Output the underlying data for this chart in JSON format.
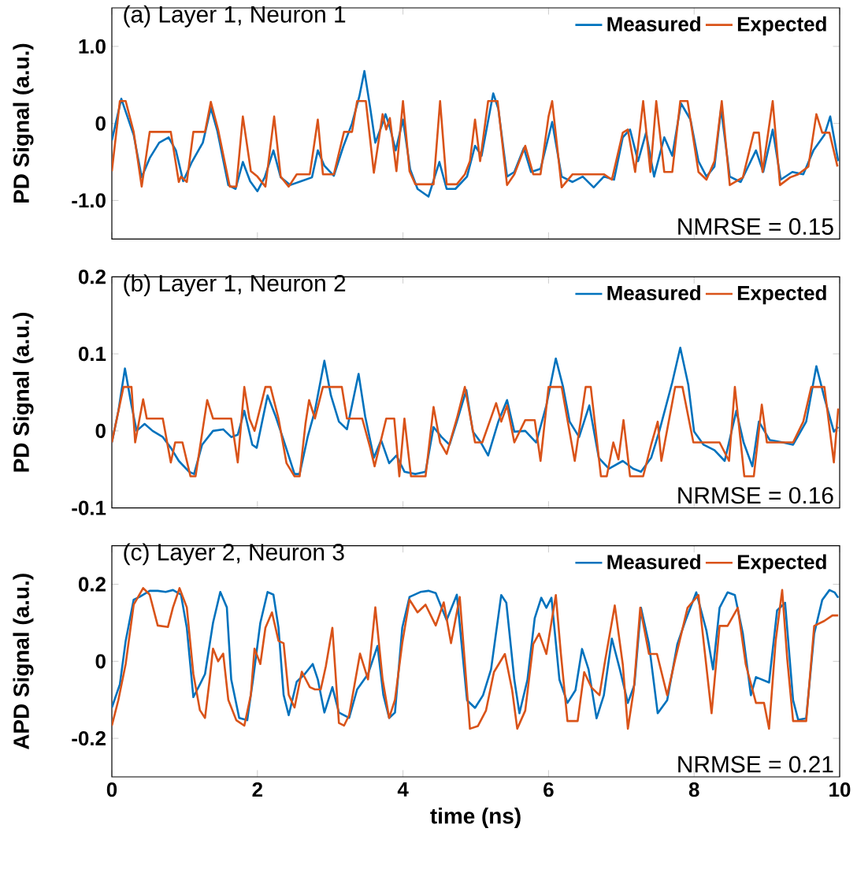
{
  "chart_data": [
    {
      "type": "line",
      "title": "(a) Layer 1, Neuron 1",
      "ylabel": "PD Signal (a.u.)",
      "xlim": [
        0,
        10
      ],
      "ylim": [
        -1.5,
        1.5
      ],
      "xticks": [
        0,
        2,
        4,
        6,
        8,
        10
      ],
      "yticks": [
        {
          "value": -1,
          "label": "-1.0"
        },
        0,
        {
          "value": 1,
          "label": "1.0"
        }
      ],
      "tick_labels": "y",
      "legend": "top right",
      "annotations": [
        "NMRSE = 0.15"
      ],
      "series": [
        {
          "name": "Measured",
          "color": "#0072bd",
          "x": [
            0,
            0.13,
            0.3,
            0.41,
            0.52,
            0.65,
            0.78,
            0.88,
            0.98,
            1.1,
            1.25,
            1.36,
            1.45,
            1.6,
            1.7,
            1.8,
            1.9,
            2.0,
            2.1,
            2.22,
            2.32,
            2.45,
            2.6,
            2.75,
            2.83,
            2.92,
            3.05,
            3.18,
            3.3,
            3.4,
            3.47,
            3.55,
            3.62,
            3.7,
            3.76,
            3.82,
            3.9,
            4.0,
            4.1,
            4.2,
            4.35,
            4.5,
            4.6,
            4.72,
            4.88,
            4.99,
            5.08,
            5.24,
            5.31,
            5.43,
            5.53,
            5.66,
            5.76,
            5.89,
            6.05,
            6.18,
            6.33,
            6.47,
            6.62,
            6.76,
            6.9,
            7.02,
            7.12,
            7.23,
            7.34,
            7.45,
            7.59,
            7.7,
            7.82,
            7.95,
            8.06,
            8.17,
            8.28,
            8.37,
            8.49,
            8.64,
            8.85,
            8.95,
            9.08,
            9.19,
            9.35,
            9.5,
            9.64,
            9.79,
            9.87,
            9.98
          ],
          "values": [
            -0.22,
            0.32,
            -0.15,
            -0.7,
            -0.45,
            -0.25,
            -0.18,
            -0.35,
            -0.75,
            -0.5,
            -0.25,
            0.2,
            -0.1,
            -0.8,
            -0.85,
            -0.5,
            -0.75,
            -0.88,
            -0.7,
            -0.35,
            -0.7,
            -0.8,
            -0.75,
            -0.7,
            -0.35,
            -0.55,
            -0.68,
            -0.3,
            0.0,
            0.35,
            0.68,
            0.2,
            -0.25,
            -0.05,
            0.12,
            -0.05,
            -0.35,
            0.05,
            -0.6,
            -0.85,
            -0.95,
            -0.5,
            -0.85,
            -0.85,
            -0.69,
            -0.29,
            -0.42,
            0.39,
            0.19,
            -0.69,
            -0.63,
            -0.32,
            -0.63,
            -0.59,
            0.02,
            -0.69,
            -0.76,
            -0.69,
            -0.83,
            -0.69,
            -0.73,
            -0.18,
            -0.08,
            -0.49,
            -0.12,
            -0.69,
            -0.18,
            -0.42,
            0.26,
            0.05,
            -0.49,
            -0.69,
            -0.56,
            0.19,
            -0.69,
            -0.76,
            -0.35,
            -0.63,
            -0.08,
            -0.73,
            -0.63,
            -0.66,
            -0.35,
            -0.15,
            0.09,
            -0.49
          ]
        },
        {
          "name": "Expected",
          "color": "#d95319",
          "x": [
            0,
            0.11,
            0.19,
            0.3,
            0.41,
            0.52,
            0.81,
            0.92,
            0.95,
            1.03,
            1.12,
            1.28,
            1.36,
            1.46,
            1.62,
            1.71,
            1.8,
            1.91,
            2.0,
            2.11,
            2.23,
            2.32,
            2.43,
            2.54,
            2.72,
            2.83,
            2.9,
            3.05,
            3.19,
            3.3,
            3.37,
            3.49,
            3.6,
            3.72,
            3.77,
            3.82,
            3.91,
            4.0,
            4.09,
            4.17,
            4.42,
            4.51,
            4.6,
            4.74,
            4.85,
            4.92,
            4.99,
            5.06,
            5.17,
            5.3,
            5.43,
            5.53,
            5.68,
            5.79,
            5.89,
            6.0,
            6.05,
            6.18,
            6.33,
            6.62,
            6.76,
            6.87,
            7.02,
            7.09,
            7.19,
            7.3,
            7.4,
            7.48,
            7.59,
            7.7,
            7.81,
            7.91,
            8.06,
            8.17,
            8.28,
            8.38,
            8.49,
            8.67,
            8.82,
            8.89,
            8.94,
            9.08,
            9.18,
            9.32,
            9.43,
            9.57,
            9.68,
            9.76,
            9.86,
            9.97
          ],
          "values": [
            -0.62,
            0.29,
            0.29,
            -0.11,
            -0.82,
            -0.11,
            -0.11,
            -0.76,
            -0.69,
            -0.76,
            -0.11,
            -0.11,
            0.28,
            -0.08,
            -0.82,
            -0.82,
            0.09,
            -0.62,
            -0.69,
            -0.82,
            0.09,
            -0.69,
            -0.82,
            -0.66,
            -0.66,
            0.05,
            -0.66,
            -0.66,
            -0.11,
            -0.11,
            0.29,
            0.29,
            -0.64,
            0.12,
            -0.08,
            0.07,
            -0.62,
            0.29,
            -0.62,
            -0.79,
            -0.79,
            0.29,
            -0.79,
            -0.79,
            -0.66,
            -0.49,
            0.05,
            -0.49,
            0.29,
            0.29,
            -0.8,
            -0.66,
            -0.29,
            -0.66,
            -0.66,
            0.09,
            0.29,
            -0.83,
            -0.66,
            -0.66,
            -0.66,
            -0.73,
            -0.12,
            -0.08,
            -0.63,
            0.29,
            -0.63,
            0.29,
            -0.63,
            -0.63,
            0.29,
            0.29,
            -0.63,
            -0.73,
            -0.49,
            0.29,
            -0.8,
            -0.7,
            -0.12,
            -0.12,
            -0.63,
            0.29,
            -0.8,
            -0.7,
            -0.66,
            -0.56,
            0.12,
            -0.12,
            -0.12,
            -0.56
          ]
        }
      ]
    },
    {
      "type": "line",
      "title": "(b) Layer 1, Neuron 2",
      "ylabel": "PD Signal (a.u.)",
      "xlim": [
        0,
        10
      ],
      "ylim": [
        -0.1,
        0.2
      ],
      "xticks": [
        0,
        2,
        4,
        6,
        8,
        10
      ],
      "yticks": [
        -0.1,
        0,
        0.1,
        0.2
      ],
      "tick_labels": "y",
      "legend": "top right",
      "annotations": [
        "NRMSE = 0.16"
      ],
      "series": [
        {
          "name": "Measured",
          "color": "#0072bd",
          "x": [
            0,
            0.09,
            0.18,
            0.27,
            0.34,
            0.45,
            0.56,
            0.7,
            0.81,
            0.92,
            1.06,
            1.13,
            1.24,
            1.39,
            1.53,
            1.64,
            1.73,
            1.82,
            1.93,
            1.99,
            2.14,
            2.25,
            2.36,
            2.51,
            2.58,
            2.69,
            2.79,
            2.92,
            3.01,
            3.12,
            3.23,
            3.39,
            3.48,
            3.6,
            3.7,
            3.81,
            3.91,
            4.02,
            4.17,
            4.31,
            4.42,
            4.53,
            4.64,
            4.74,
            4.87,
            4.96,
            5.07,
            5.17,
            5.31,
            5.43,
            5.53,
            5.68,
            5.83,
            5.97,
            6.1,
            6.2,
            6.29,
            6.42,
            6.56,
            6.69,
            6.83,
            7.02,
            7.16,
            7.27,
            7.41,
            7.52,
            7.7,
            7.81,
            7.92,
            8.0,
            8.13,
            8.28,
            8.42,
            8.58,
            8.68,
            8.8,
            8.89,
            9.04,
            9.22,
            9.36,
            9.54,
            9.68,
            9.79,
            9.92,
            9.98
          ],
          "values": [
            -0.015,
            0.026,
            0.081,
            0.033,
            0.0,
            0.009,
            0.0,
            -0.008,
            -0.022,
            -0.039,
            -0.053,
            -0.056,
            -0.018,
            0.0,
            0.002,
            -0.008,
            -0.005,
            0.026,
            -0.018,
            -0.022,
            0.046,
            0.019,
            -0.012,
            -0.056,
            -0.056,
            -0.008,
            0.026,
            0.091,
            0.046,
            0.012,
            0.002,
            0.074,
            0.019,
            -0.035,
            -0.012,
            -0.042,
            -0.032,
            -0.053,
            -0.056,
            -0.053,
            0.005,
            -0.008,
            -0.018,
            0.012,
            0.053,
            -0.001,
            -0.015,
            -0.032,
            0.012,
            0.04,
            -0.001,
            0.0,
            -0.015,
            0.033,
            0.094,
            0.057,
            0.012,
            -0.008,
            0.033,
            -0.035,
            -0.049,
            -0.039,
            -0.049,
            -0.053,
            -0.035,
            -0.001,
            0.063,
            0.108,
            0.06,
            -0.001,
            -0.018,
            -0.025,
            -0.039,
            0.026,
            -0.015,
            -0.046,
            0.012,
            -0.012,
            -0.015,
            -0.018,
            0.012,
            0.084,
            0.043,
            -0.001,
            0.005
          ]
        },
        {
          "name": "Expected",
          "color": "#d95319",
          "x": [
            0,
            0.16,
            0.27,
            0.32,
            0.43,
            0.48,
            0.7,
            0.81,
            0.87,
            0.97,
            1.08,
            1.15,
            1.31,
            1.39,
            1.64,
            1.73,
            1.82,
            1.89,
            1.96,
            2.11,
            2.18,
            2.29,
            2.4,
            2.51,
            2.58,
            2.66,
            2.71,
            2.79,
            2.9,
            3.16,
            3.23,
            3.44,
            3.55,
            3.61,
            3.77,
            3.88,
            3.95,
            4.02,
            4.11,
            4.31,
            4.42,
            4.51,
            4.6,
            4.74,
            4.85,
            4.99,
            5.09,
            5.28,
            5.35,
            5.43,
            5.53,
            5.68,
            5.81,
            5.89,
            6.0,
            6.18,
            6.36,
            6.51,
            6.58,
            6.72,
            6.8,
            6.89,
            6.96,
            7.03,
            7.12,
            7.3,
            7.41,
            7.5,
            7.55,
            7.74,
            7.84,
            7.99,
            8.35,
            8.48,
            8.56,
            8.69,
            8.82,
            8.93,
            9.0,
            9.36,
            9.5,
            9.61,
            9.79,
            9.92,
            9.98
          ],
          "values": [
            -0.015,
            0.057,
            0.057,
            -0.015,
            0.041,
            0.016,
            0.016,
            -0.041,
            -0.015,
            -0.015,
            -0.059,
            -0.059,
            0.04,
            0.016,
            0.016,
            -0.041,
            0.057,
            0.016,
            0.0,
            0.057,
            0.057,
            0.016,
            -0.042,
            -0.059,
            -0.059,
            0.009,
            0.04,
            0.016,
            0.057,
            0.057,
            0.016,
            0.016,
            -0.022,
            -0.046,
            0.016,
            0.016,
            -0.059,
            0.016,
            -0.059,
            -0.059,
            0.031,
            -0.015,
            -0.03,
            0.016,
            0.057,
            -0.015,
            -0.015,
            0.036,
            0.012,
            0.033,
            -0.015,
            0.014,
            0.014,
            -0.039,
            0.057,
            0.057,
            -0.039,
            0.057,
            0.057,
            -0.059,
            -0.059,
            -0.015,
            -0.037,
            0.014,
            -0.059,
            -0.059,
            -0.018,
            0.012,
            -0.039,
            0.057,
            0.057,
            -0.015,
            -0.015,
            -0.039,
            0.057,
            -0.059,
            -0.059,
            0.034,
            -0.015,
            -0.015,
            0.012,
            0.057,
            0.057,
            -0.041,
            0.029
          ]
        }
      ]
    },
    {
      "type": "line",
      "title": "(c) Layer 2, Neuron 3",
      "ylabel": "APD Signal (a.u.)",
      "xlabel": "time (ns)",
      "xlim": [
        0,
        10
      ],
      "ylim": [
        -0.3,
        0.3
      ],
      "xticks": [
        0,
        2,
        4,
        6,
        8,
        10
      ],
      "yticks": [
        -0.2,
        0,
        0.2
      ],
      "legend": "top right",
      "annotations": [
        "NRMSE = 0.21"
      ],
      "series": [
        {
          "name": "Measured",
          "color": "#0072bd",
          "x": [
            0,
            0.11,
            0.19,
            0.3,
            0.38,
            0.52,
            0.63,
            0.74,
            0.84,
            0.95,
            1.03,
            1.12,
            1.21,
            1.28,
            1.39,
            1.49,
            1.58,
            1.64,
            1.75,
            1.86,
            1.94,
            2.04,
            2.14,
            2.22,
            2.29,
            2.36,
            2.43,
            2.54,
            2.65,
            2.76,
            2.83,
            2.92,
            3.03,
            3.12,
            3.26,
            3.37,
            3.52,
            3.65,
            3.73,
            3.81,
            3.89,
            3.99,
            4.09,
            4.24,
            4.35,
            4.45,
            4.6,
            4.74,
            4.88,
            4.99,
            5.1,
            5.21,
            5.35,
            5.42,
            5.53,
            5.6,
            5.71,
            5.81,
            5.9,
            5.97,
            6.04,
            6.15,
            6.26,
            6.37,
            6.46,
            6.55,
            6.66,
            6.76,
            6.87,
            6.98,
            7.09,
            7.18,
            7.27,
            7.38,
            7.5,
            7.63,
            7.77,
            7.88,
            8.03,
            8.17,
            8.26,
            8.35,
            8.46,
            8.56,
            8.67,
            8.78,
            8.85,
            9.03,
            9.14,
            9.25,
            9.36,
            9.43,
            9.54,
            9.65,
            9.76,
            9.86,
            9.93,
            9.98
          ],
          "values": [
            -0.12,
            -0.06,
            0.053,
            0.16,
            0.167,
            0.183,
            0.183,
            0.18,
            0.185,
            0.173,
            0.087,
            -0.093,
            -0.06,
            -0.033,
            0.1,
            0.18,
            0.14,
            -0.047,
            -0.147,
            -0.153,
            -0.047,
            0.1,
            0.18,
            0.173,
            0.087,
            -0.087,
            -0.14,
            -0.053,
            -0.033,
            -0.007,
            -0.047,
            -0.133,
            -0.067,
            -0.133,
            -0.147,
            -0.073,
            -0.033,
            0.04,
            -0.087,
            -0.147,
            -0.133,
            0.087,
            0.167,
            0.18,
            0.183,
            0.177,
            0.107,
            0.173,
            -0.101,
            -0.121,
            -0.088,
            -0.021,
            0.172,
            0.152,
            -0.048,
            -0.135,
            -0.048,
            0.112,
            0.165,
            0.139,
            0.165,
            -0.048,
            -0.108,
            -0.075,
            0.032,
            -0.021,
            -0.148,
            -0.088,
            0.059,
            -0.021,
            -0.108,
            -0.061,
            0.139,
            0.045,
            -0.135,
            -0.101,
            0.045,
            0.105,
            0.179,
            0.079,
            -0.021,
            0.139,
            0.179,
            0.172,
            0.072,
            -0.088,
            -0.041,
            -0.055,
            0.132,
            0.152,
            -0.101,
            -0.152,
            -0.148,
            0.072,
            0.159,
            0.185,
            0.179,
            0.165
          ]
        },
        {
          "name": "Expected",
          "color": "#d95319",
          "x": [
            0,
            0.09,
            0.19,
            0.3,
            0.43,
            0.52,
            0.63,
            0.77,
            0.84,
            0.93,
            1.03,
            1.12,
            1.21,
            1.28,
            1.34,
            1.39,
            1.46,
            1.53,
            1.6,
            1.71,
            1.82,
            1.91,
            1.96,
            2.04,
            2.11,
            2.2,
            2.29,
            2.36,
            2.43,
            2.51,
            2.61,
            2.72,
            2.79,
            2.87,
            2.94,
            3.03,
            3.12,
            3.19,
            3.26,
            3.41,
            3.52,
            3.62,
            3.72,
            3.81,
            3.89,
            3.99,
            4.09,
            4.2,
            4.31,
            4.45,
            4.56,
            4.66,
            4.78,
            4.92,
            5.03,
            5.14,
            5.25,
            5.4,
            5.5,
            5.57,
            5.68,
            5.79,
            5.87,
            5.97,
            6.1,
            6.17,
            6.26,
            6.4,
            6.49,
            6.59,
            6.7,
            6.78,
            6.91,
            7.02,
            7.09,
            7.17,
            7.26,
            7.38,
            7.49,
            7.63,
            7.74,
            7.91,
            8.06,
            8.24,
            8.35,
            8.46,
            8.6,
            8.71,
            8.85,
            8.96,
            9.03,
            9.12,
            9.21,
            9.28,
            9.36,
            9.54,
            9.65,
            9.79,
            9.9,
            9.98
          ],
          "values": [
            -0.167,
            -0.1,
            -0.007,
            0.147,
            0.19,
            0.173,
            0.093,
            0.089,
            0.14,
            0.19,
            0.14,
            -0.033,
            -0.127,
            -0.147,
            -0.053,
            0.033,
            0.0,
            0.02,
            -0.1,
            -0.153,
            -0.167,
            -0.087,
            0.033,
            -0.007,
            0.087,
            0.127,
            0.053,
            0.047,
            -0.087,
            -0.12,
            -0.027,
            -0.067,
            -0.073,
            -0.073,
            -0.013,
            0.087,
            -0.16,
            -0.167,
            -0.14,
            0.02,
            -0.047,
            0.14,
            -0.047,
            -0.147,
            -0.1,
            0.047,
            0.16,
            0.127,
            0.147,
            0.093,
            0.153,
            0.047,
            0.167,
            -0.175,
            -0.168,
            -0.128,
            -0.028,
            0.019,
            -0.075,
            -0.175,
            -0.128,
            0.045,
            0.072,
            0.019,
            0.172,
            0.019,
            -0.155,
            -0.155,
            -0.028,
            -0.068,
            -0.088,
            0.005,
            0.145,
            -0.008,
            -0.175,
            -0.075,
            0.139,
            0.019,
            0.019,
            -0.088,
            0.005,
            0.139,
            0.172,
            -0.135,
            0.092,
            0.092,
            0.139,
            -0.008,
            -0.108,
            -0.108,
            -0.175,
            0.052,
            0.185,
            0.005,
            -0.155,
            -0.155,
            0.092,
            0.105,
            0.119,
            0.119
          ]
        }
      ]
    }
  ]
}
